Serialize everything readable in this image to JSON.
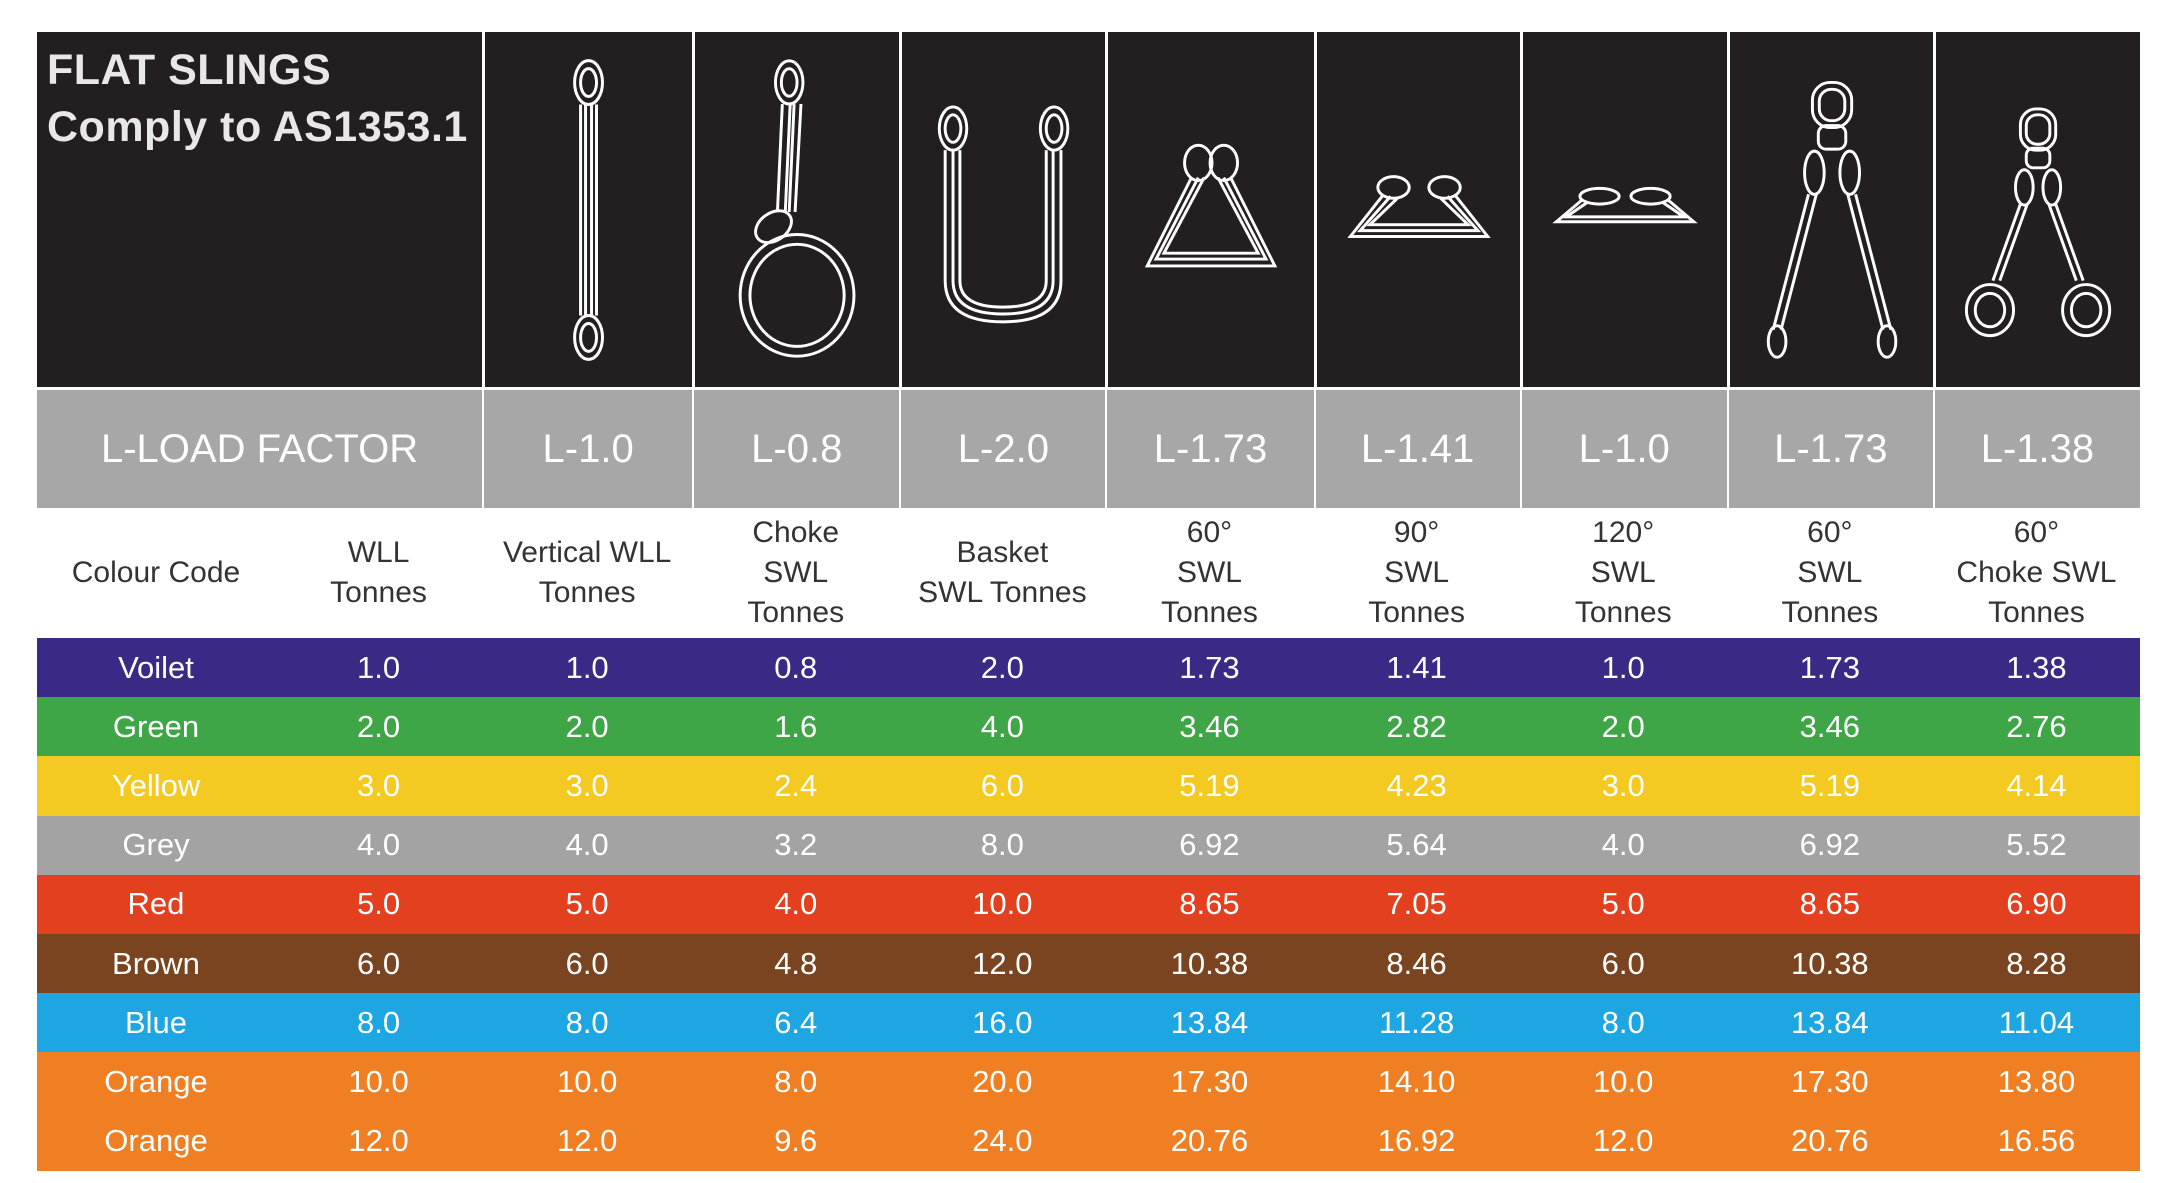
{
  "title": {
    "line1": "FLAT SLINGS",
    "line2": "Comply to AS1353.1"
  },
  "slings": [
    {
      "icon": "single-sling-icon"
    },
    {
      "icon": "choke-sling-icon"
    },
    {
      "icon": "basket-sling-icon"
    },
    {
      "icon": "basket-60-sling-icon"
    },
    {
      "icon": "basket-90-sling-icon"
    },
    {
      "icon": "basket-120-sling-icon"
    },
    {
      "icon": "two-leg-sling-icon"
    },
    {
      "icon": "two-leg-choke-sling-icon"
    }
  ],
  "load_factor": {
    "label": "L-LOAD FACTOR",
    "values": [
      "L-1.0",
      "L-0.8",
      "L-2.0",
      "L-1.73",
      "L-1.41",
      "L-1.0",
      "L-1.73",
      "L-1.38"
    ]
  },
  "headers": [
    "Colour Code",
    "WLL\nTonnes",
    "Vertical WLL\nTonnes",
    "Choke\nSWL\nTonnes",
    "Basket\nSWL Tonnes",
    "60°\nSWL\nTonnes",
    "90°\nSWL\nTonnes",
    "120°\nSWL\nTonnes",
    "60°\nSWL\nTonnes",
    "60°\nChoke SWL\nTonnes"
  ],
  "rows": [
    {
      "colour": "Voilet",
      "bg": "#3b2a85",
      "fg": "#ffffff",
      "values": [
        "1.0",
        "1.0",
        "0.8",
        "2.0",
        "1.73",
        "1.41",
        "1.0",
        "1.73",
        "1.38"
      ]
    },
    {
      "colour": "Green",
      "bg": "#3fa648",
      "fg": "#ffffff",
      "values": [
        "2.0",
        "2.0",
        "1.6",
        "4.0",
        "3.46",
        "2.82",
        "2.0",
        "3.46",
        "2.76"
      ]
    },
    {
      "colour": "Yellow",
      "bg": "#f4c922",
      "fg": "#ffffff",
      "values": [
        "3.0",
        "3.0",
        "2.4",
        "6.0",
        "5.19",
        "4.23",
        "3.0",
        "5.19",
        "4.14"
      ]
    },
    {
      "colour": "Grey",
      "bg": "#a3a3a3",
      "fg": "#ffffff",
      "values": [
        "4.0",
        "4.0",
        "3.2",
        "8.0",
        "6.92",
        "5.64",
        "4.0",
        "6.92",
        "5.52"
      ]
    },
    {
      "colour": "Red",
      "bg": "#e2401f",
      "fg": "#ffffff",
      "values": [
        "5.0",
        "5.0",
        "4.0",
        "10.0",
        "8.65",
        "7.05",
        "5.0",
        "8.65",
        "6.90"
      ]
    },
    {
      "colour": "Brown",
      "bg": "#7a4420",
      "fg": "#ffffff",
      "values": [
        "6.0",
        "6.0",
        "4.8",
        "12.0",
        "10.38",
        "8.46",
        "6.0",
        "10.38",
        "8.28"
      ]
    },
    {
      "colour": "Blue",
      "bg": "#1ea6e3",
      "fg": "#ffffff",
      "values": [
        "8.0",
        "8.0",
        "6.4",
        "16.0",
        "13.84",
        "11.28",
        "8.0",
        "13.84",
        "11.04"
      ]
    },
    {
      "colour": "Orange",
      "bg": "#ef7f22",
      "fg": "#ffffff",
      "values": [
        "10.0",
        "10.0",
        "8.0",
        "20.0",
        "17.30",
        "14.10",
        "10.0",
        "17.30",
        "13.80"
      ]
    },
    {
      "colour": "Orange",
      "bg": "#ef7f22",
      "fg": "#ffffff",
      "values": [
        "12.0",
        "12.0",
        "9.6",
        "24.0",
        "20.76",
        "16.92",
        "12.0",
        "20.76",
        "16.56"
      ]
    }
  ]
}
